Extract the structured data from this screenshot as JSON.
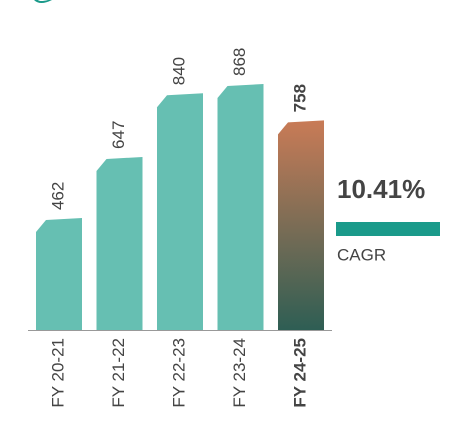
{
  "chart_data": {
    "type": "bar",
    "categories": [
      "FY 20-21",
      "FY 21-22",
      "FY 22-23",
      "FY 23-24",
      "FY 24-25"
    ],
    "values": [
      462,
      647,
      840,
      868,
      758
    ],
    "color": "#66bfb2",
    "highlight": {
      "index": 4,
      "colors": [
        "#c97b56",
        "#2e5e54"
      ]
    },
    "ylim": [
      129,
      868
    ],
    "annotation": {
      "value": 10.41,
      "value_label": "10.41%",
      "label": "CAGR",
      "color": "#c97b56",
      "line_color": "#1a9a8a"
    }
  }
}
